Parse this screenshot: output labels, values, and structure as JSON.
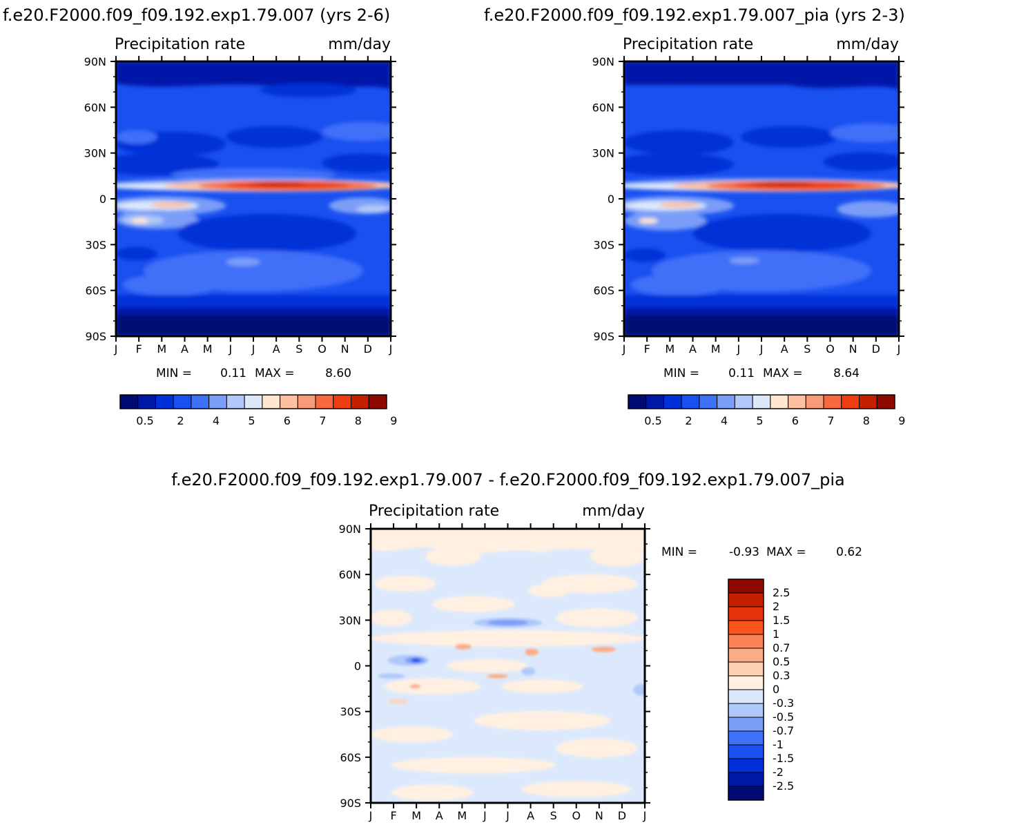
{
  "chart_data": [
    {
      "type": "heatmap",
      "title": "f.e20.F2000.f09_f09.192.exp1.79.007 (yrs 2-6)",
      "left_label": "Precipitation rate",
      "right_label": "mm/day",
      "x_tick_labels": [
        "J",
        "F",
        "M",
        "A",
        "M",
        "J",
        "J",
        "A",
        "S",
        "O",
        "N",
        "D",
        "J"
      ],
      "y_tick_labels": [
        "90N",
        "60N",
        "30N",
        "0",
        "30S",
        "60S",
        "90S"
      ],
      "ylim": [
        -90,
        90
      ],
      "min_label": "MIN =",
      "min_value": "0.11",
      "max_label": "MAX =",
      "max_value": "8.60",
      "colorbar_tick_labels": [
        "0.5",
        "2",
        "4",
        "5",
        "6",
        "7",
        "8",
        "9"
      ],
      "colorbar_colors": [
        "#000a73",
        "#0018a8",
        "#0030d8",
        "#1a50f0",
        "#3f70f8",
        "#7a9ef8",
        "#b0c8fa",
        "#dce9fc",
        "#ffe6d0",
        "#fcc0a0",
        "#f99a78",
        "#f76a40",
        "#ec3e10",
        "#c42000",
        "#8e0a00"
      ]
    },
    {
      "type": "heatmap",
      "title": "f.e20.F2000.f09_f09.192.exp1.79.007_pia (yrs 2-3)",
      "left_label": "Precipitation rate",
      "right_label": "mm/day",
      "x_tick_labels": [
        "J",
        "F",
        "M",
        "A",
        "M",
        "J",
        "J",
        "A",
        "S",
        "O",
        "N",
        "D",
        "J"
      ],
      "y_tick_labels": [
        "90N",
        "60N",
        "30N",
        "0",
        "30S",
        "60S",
        "90S"
      ],
      "ylim": [
        -90,
        90
      ],
      "min_label": "MIN =",
      "min_value": "0.11",
      "max_label": "MAX =",
      "max_value": "8.64",
      "colorbar_tick_labels": [
        "0.5",
        "2",
        "4",
        "5",
        "6",
        "7",
        "8",
        "9"
      ],
      "colorbar_colors": [
        "#000a73",
        "#0018a8",
        "#0030d8",
        "#1a50f0",
        "#3f70f8",
        "#7a9ef8",
        "#b0c8fa",
        "#dce9fc",
        "#ffe6d0",
        "#fcc0a0",
        "#f99a78",
        "#f76a40",
        "#ec3e10",
        "#c42000",
        "#8e0a00"
      ]
    },
    {
      "type": "heatmap",
      "title": "f.e20.F2000.f09_f09.192.exp1.79.007 - f.e20.F2000.f09_f09.192.exp1.79.007_pia",
      "left_label": "Precipitation rate",
      "right_label": "mm/day",
      "x_tick_labels": [
        "J",
        "F",
        "M",
        "A",
        "M",
        "J",
        "J",
        "A",
        "S",
        "O",
        "N",
        "D",
        "J"
      ],
      "y_tick_labels": [
        "90N",
        "60N",
        "30N",
        "0",
        "30S",
        "60S",
        "90S"
      ],
      "ylim": [
        -90,
        90
      ],
      "min_label": "MIN =",
      "min_value": "-0.93",
      "max_label": "MAX =",
      "max_value": "0.62",
      "colorbar_tick_labels": [
        "2.5",
        "2",
        "1.5",
        "1",
        "0.7",
        "0.5",
        "0.3",
        "0",
        "-0.3",
        "-0.5",
        "-0.7",
        "-1",
        "-1.5",
        "-2",
        "-2.5"
      ],
      "colorbar_colors": [
        "#8e0a00",
        "#c42000",
        "#e63208",
        "#f8541c",
        "#fa8456",
        "#fcac84",
        "#fed0b4",
        "#fff0e2",
        "#dce9fc",
        "#b0c8fa",
        "#7a9ef8",
        "#3f70f8",
        "#1a50f0",
        "#0030d8",
        "#0018a8",
        "#000a73"
      ]
    }
  ]
}
